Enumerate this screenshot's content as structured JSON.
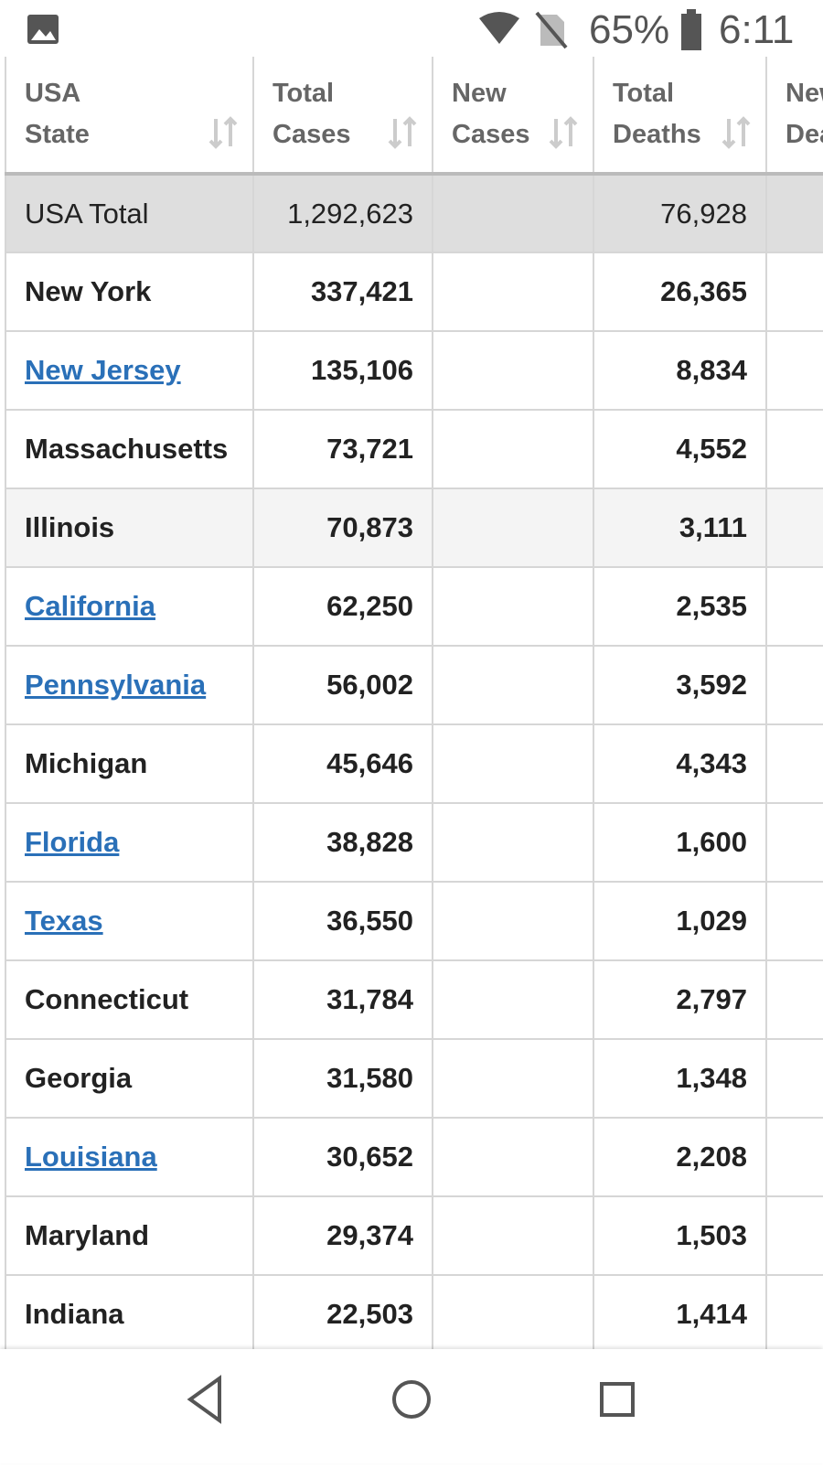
{
  "status_bar": {
    "battery": "65%",
    "time": "6:11"
  },
  "table": {
    "columns": [
      "USA State",
      "Total Cases",
      "New Cases",
      "Total Deaths",
      "New Deaths"
    ],
    "total_row": {
      "state": "USA Total",
      "total_cases": "1,292,623",
      "total_deaths": "76,928"
    },
    "rows": [
      {
        "state": "New York",
        "total_cases": "337,421",
        "total_deaths": "26,365",
        "link": false
      },
      {
        "state": "New Jersey",
        "total_cases": "135,106",
        "total_deaths": "8,834",
        "link": true
      },
      {
        "state": "Massachusetts",
        "total_cases": "73,721",
        "total_deaths": "4,552",
        "link": false
      },
      {
        "state": "Illinois",
        "total_cases": "70,873",
        "total_deaths": "3,111",
        "link": false
      },
      {
        "state": "California",
        "total_cases": "62,250",
        "total_deaths": "2,535",
        "link": true
      },
      {
        "state": "Pennsylvania",
        "total_cases": "56,002",
        "total_deaths": "3,592",
        "link": true
      },
      {
        "state": "Michigan",
        "total_cases": "45,646",
        "total_deaths": "4,343",
        "link": false
      },
      {
        "state": "Florida",
        "total_cases": "38,828",
        "total_deaths": "1,600",
        "link": true
      },
      {
        "state": "Texas",
        "total_cases": "36,550",
        "total_deaths": "1,029",
        "link": true
      },
      {
        "state": "Connecticut",
        "total_cases": "31,784",
        "total_deaths": "2,797",
        "link": false
      },
      {
        "state": "Georgia",
        "total_cases": "31,580",
        "total_deaths": "1,348",
        "link": false
      },
      {
        "state": "Louisiana",
        "total_cases": "30,652",
        "total_deaths": "2,208",
        "link": true
      },
      {
        "state": "Maryland",
        "total_cases": "29,374",
        "total_deaths": "1,503",
        "link": false
      },
      {
        "state": "Indiana",
        "total_cases": "22,503",
        "total_deaths": "1,414",
        "link": false
      }
    ]
  }
}
